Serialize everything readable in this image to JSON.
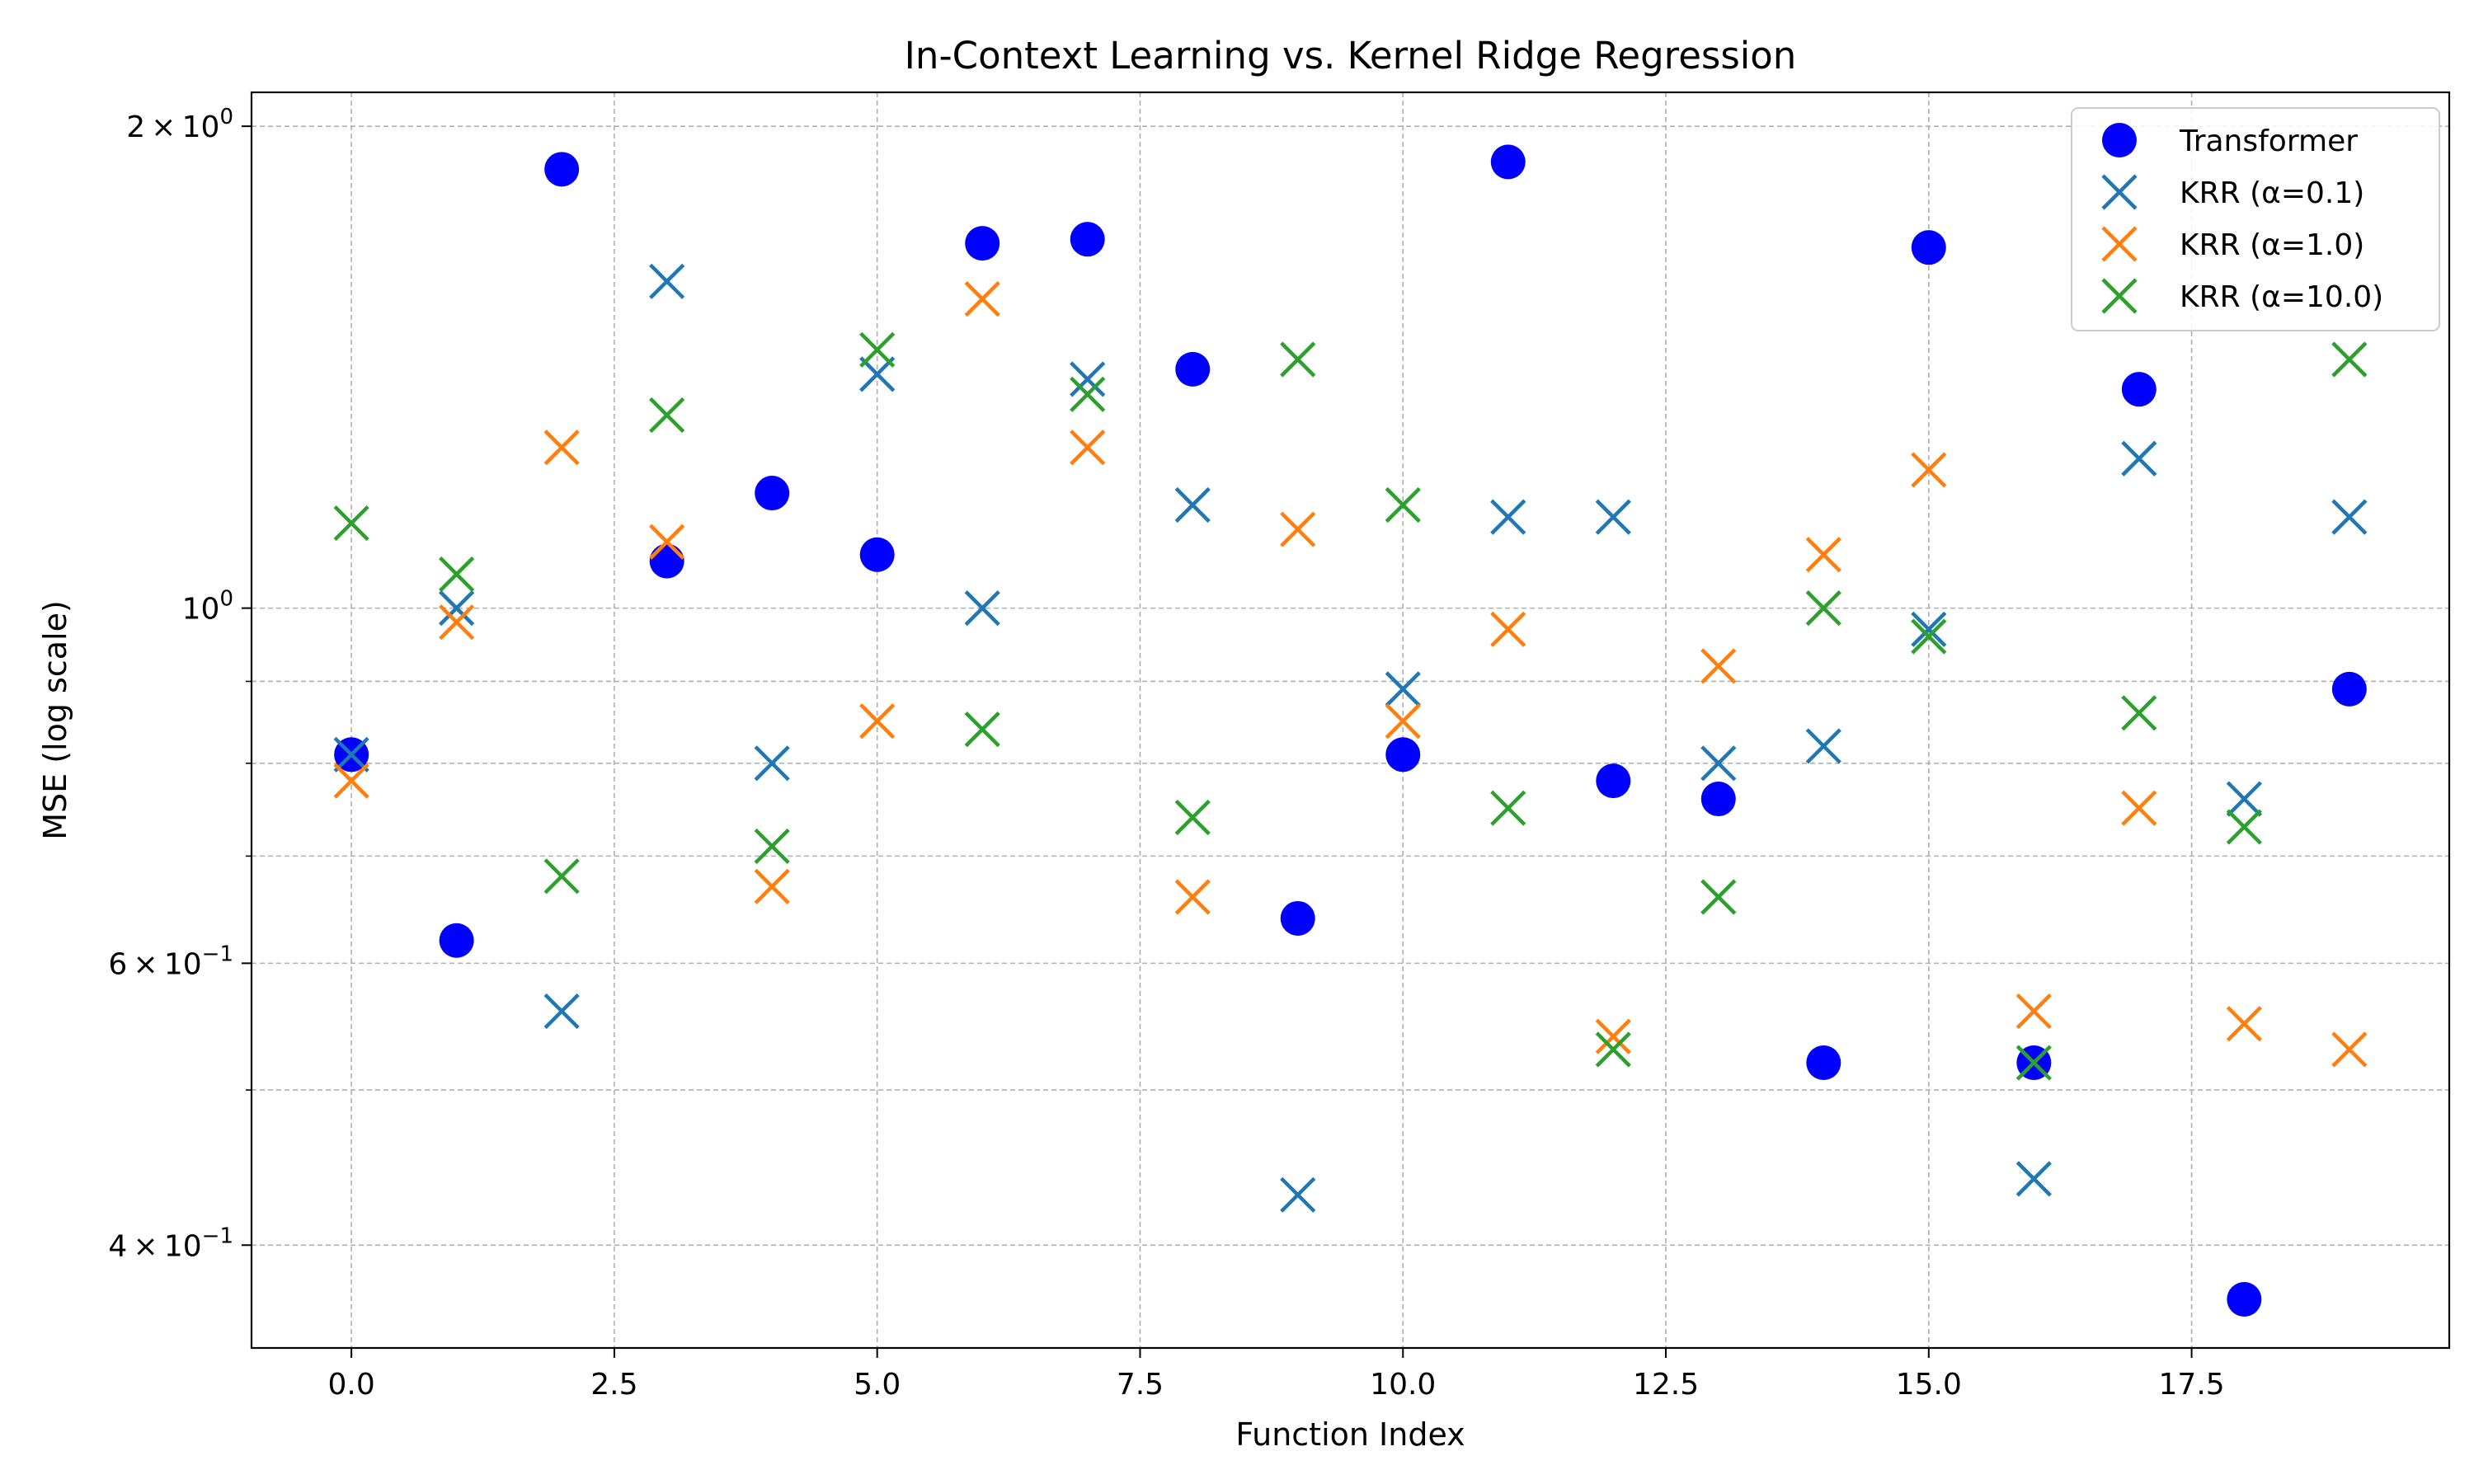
{
  "chart_data": {
    "type": "scatter",
    "title": "In-Context Learning vs. Kernel Ridge Regression",
    "xlabel": "Function Index",
    "ylabel": "MSE (log scale)",
    "yscale": "log",
    "xlim": [
      -0.95,
      19.95
    ],
    "ylim": [
      0.345,
      2.1
    ],
    "grid": true,
    "legend_position": "top-right",
    "x": [
      0,
      1,
      2,
      3,
      4,
      5,
      6,
      7,
      8,
      9,
      10,
      11,
      12,
      13,
      14,
      15,
      16,
      17,
      18,
      19
    ],
    "xticks": [
      0.0,
      2.5,
      5.0,
      7.5,
      10.0,
      12.5,
      15.0,
      17.5
    ],
    "xtick_labels": [
      "0.0",
      "2.5",
      "5.0",
      "7.5",
      "10.0",
      "12.5",
      "15.0",
      "17.5"
    ],
    "yticks_major": [
      {
        "value": 2.0,
        "mantissa": "2",
        "base": "10",
        "exp": "0"
      },
      {
        "value": 1.0,
        "mantissa": "",
        "base": "10",
        "exp": "0"
      },
      {
        "value": 0.6,
        "mantissa": "6",
        "base": "10",
        "exp": "−1"
      },
      {
        "value": 0.4,
        "mantissa": "4",
        "base": "10",
        "exp": "−1"
      }
    ],
    "yticks_minor_grid": [
      0.5,
      0.7,
      0.8,
      0.9
    ],
    "series": [
      {
        "name": "Transformer",
        "marker": "circle",
        "color": "#0000ff",
        "values": [
          0.81,
          0.62,
          1.88,
          1.07,
          1.18,
          1.08,
          1.69,
          1.7,
          1.41,
          0.64,
          0.81,
          1.9,
          0.78,
          0.76,
          0.52,
          1.68,
          0.52,
          1.37,
          0.37,
          0.89
        ]
      },
      {
        "name": "KRR (α=0.1)",
        "marker": "x",
        "color": "#1f77b4",
        "values": [
          0.81,
          1.0,
          0.56,
          1.6,
          0.8,
          1.4,
          1.0,
          1.39,
          1.16,
          0.43,
          0.89,
          1.14,
          1.14,
          0.8,
          0.82,
          0.97,
          0.44,
          1.24,
          0.76,
          1.14
        ]
      },
      {
        "name": "KRR (α=1.0)",
        "marker": "x",
        "color": "#ff7f0e",
        "values": [
          0.78,
          0.98,
          1.26,
          1.1,
          0.67,
          0.85,
          1.56,
          1.26,
          0.66,
          1.12,
          0.85,
          0.97,
          0.54,
          0.92,
          1.08,
          1.22,
          0.56,
          0.75,
          0.55,
          0.53
        ]
      },
      {
        "name": "KRR (α=10.0)",
        "marker": "x",
        "color": "#2ca02c",
        "values": [
          1.13,
          1.05,
          0.68,
          1.32,
          0.71,
          1.45,
          0.84,
          1.36,
          0.74,
          1.43,
          1.16,
          0.75,
          0.53,
          0.66,
          1.0,
          0.96,
          0.52,
          0.86,
          0.73,
          1.43
        ]
      }
    ]
  }
}
